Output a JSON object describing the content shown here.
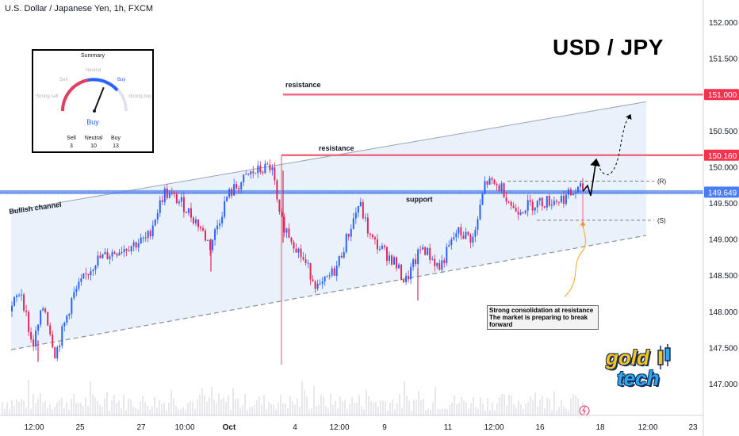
{
  "header": {
    "symbol_title": "U.S. Dollar / Japanese Yen, 1h, FXCM",
    "pair_title": "USD / JPY"
  },
  "summary": {
    "title": "Summary",
    "gauge_labels": {
      "strong_sell": "Strong sell",
      "sell": "Sell",
      "neutral": "Neutral",
      "buy": "Buy",
      "strong_buy": "Strong buy"
    },
    "verdict": "Buy",
    "needle_value": 0.62,
    "counts": [
      {
        "label": "Sell",
        "value": "3"
      },
      {
        "label": "Neutral",
        "value": "10"
      },
      {
        "label": "Buy",
        "value": "13"
      }
    ]
  },
  "annotations": {
    "bullish_channel": "Bullish channel",
    "resistance_1": "resistance",
    "resistance_2": "resistance",
    "support": "support",
    "r_mark": "(R)",
    "s_mark": "(S)",
    "note": [
      "Strong consolidation at resistance",
      "The market is preparing to break",
      "forward"
    ]
  },
  "logo": {
    "word1": "gold",
    "word2": "tech"
  },
  "colors": {
    "up": "#2962ff",
    "down": "#e0285a",
    "resistance": "#f06a82",
    "support": "#4a7df0",
    "channel_fill": "#dbe8f8",
    "arrow_orange": "#f5a623",
    "gauge_red": "#e03e5e",
    "gauge_blue": "#2962ff"
  },
  "chart_data": {
    "type": "candlestick",
    "yaxis": {
      "ticks": [
        "152.000",
        "151.500",
        "151.000",
        "150.500",
        "150.160",
        "150.000",
        "149.649",
        "149.500",
        "149.000",
        "148.500",
        "148.000",
        "147.500",
        "147.000"
      ],
      "range": [
        146.6,
        152.2
      ]
    },
    "xaxis": {
      "ticks": [
        "12:00",
        "25",
        "27",
        "10:00",
        "Oct",
        "4",
        "12:00",
        "9",
        "11",
        "12:00",
        "16",
        "18",
        "12:00",
        "23"
      ]
    },
    "levels": [
      {
        "name": "resistance",
        "price": 151.0,
        "price_label": "151.000"
      },
      {
        "name": "resistance",
        "price": 150.16,
        "price_label": "150.160"
      },
      {
        "name": "support",
        "price": 149.649,
        "price_label": "149.649"
      }
    ],
    "channel": {
      "upper": [
        {
          "t": 0,
          "p": 149.39
        },
        {
          "t": 1,
          "p": 150.9
        }
      ],
      "lower": [
        {
          "t": 0,
          "p": 147.47
        },
        {
          "t": 1,
          "p": 149.05
        }
      ]
    },
    "price_path": [
      {
        "t": 0.0,
        "p": 148.0
      },
      {
        "t": 0.02,
        "p": 148.3
      },
      {
        "t": 0.04,
        "p": 147.5
      },
      {
        "t": 0.06,
        "p": 148.1
      },
      {
        "t": 0.08,
        "p": 147.4
      },
      {
        "t": 0.11,
        "p": 148.2
      },
      {
        "t": 0.15,
        "p": 148.7
      },
      {
        "t": 0.19,
        "p": 148.85
      },
      {
        "t": 0.24,
        "p": 149.0
      },
      {
        "t": 0.27,
        "p": 149.65
      },
      {
        "t": 0.3,
        "p": 149.5
      },
      {
        "t": 0.33,
        "p": 149.2
      },
      {
        "t": 0.35,
        "p": 148.9
      },
      {
        "t": 0.38,
        "p": 149.6
      },
      {
        "t": 0.42,
        "p": 149.9
      },
      {
        "t": 0.455,
        "p": 150.0
      },
      {
        "t": 0.46,
        "p": 149.9
      },
      {
        "t": 0.47,
        "p": 149.3
      },
      {
        "t": 0.5,
        "p": 148.9
      },
      {
        "t": 0.54,
        "p": 148.3
      },
      {
        "t": 0.57,
        "p": 148.6
      },
      {
        "t": 0.61,
        "p": 149.5
      },
      {
        "t": 0.63,
        "p": 149.0
      },
      {
        "t": 0.67,
        "p": 148.7
      },
      {
        "t": 0.69,
        "p": 148.4
      },
      {
        "t": 0.72,
        "p": 148.9
      },
      {
        "t": 0.75,
        "p": 148.6
      },
      {
        "t": 0.78,
        "p": 149.1
      },
      {
        "t": 0.81,
        "p": 149.0
      },
      {
        "t": 0.83,
        "p": 149.8
      },
      {
        "t": 0.86,
        "p": 149.7
      },
      {
        "t": 0.88,
        "p": 149.4
      },
      {
        "t": 0.92,
        "p": 149.5
      },
      {
        "t": 0.96,
        "p": 149.55
      },
      {
        "t": 1.0,
        "p": 149.7
      }
    ]
  }
}
